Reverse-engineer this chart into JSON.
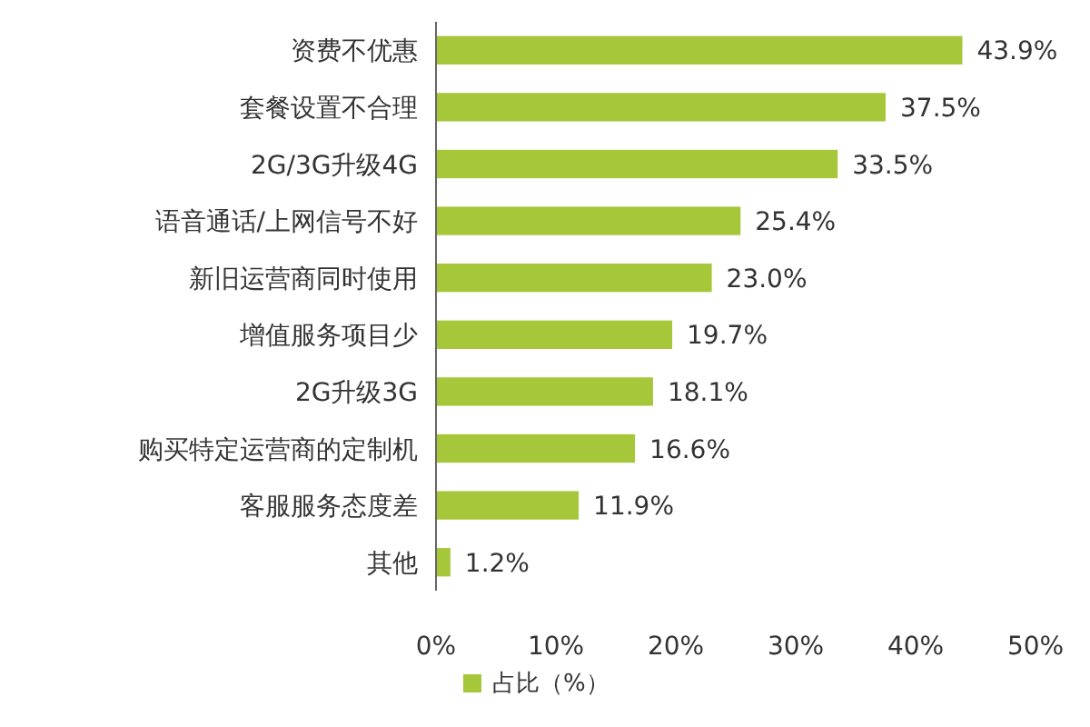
{
  "chart_data": {
    "type": "bar",
    "orientation": "horizontal",
    "categories": [
      "资费不优惠",
      "套餐设置不合理",
      "2G/3G升级4G",
      "语音通话/上网信号不好",
      "新旧运营商同时使用",
      "增值服务项目少",
      "2G升级3G",
      "购买特定运营商的定制机",
      "客服服务态度差",
      "其他"
    ],
    "series": [
      {
        "name": "占比（%）",
        "color": "#a5c739",
        "values": [
          43.9,
          37.5,
          33.5,
          25.4,
          23.0,
          19.7,
          18.1,
          16.6,
          11.9,
          1.2
        ],
        "value_labels": [
          "43.9%",
          "37.5%",
          "33.5%",
          "25.4%",
          "23.0%",
          "19.7%",
          "18.1%",
          "16.6%",
          "11.9%",
          "1.2%"
        ]
      }
    ],
    "xlim": [
      0,
      50
    ],
    "xticks": [
      {
        "value": 0,
        "label": "0%"
      },
      {
        "value": 10,
        "label": "10%"
      },
      {
        "value": 20,
        "label": "20%"
      },
      {
        "value": 30,
        "label": "30%"
      },
      {
        "value": 40,
        "label": "40%"
      },
      {
        "value": 50,
        "label": "50%"
      }
    ],
    "grid": false,
    "legend": "bottom"
  }
}
